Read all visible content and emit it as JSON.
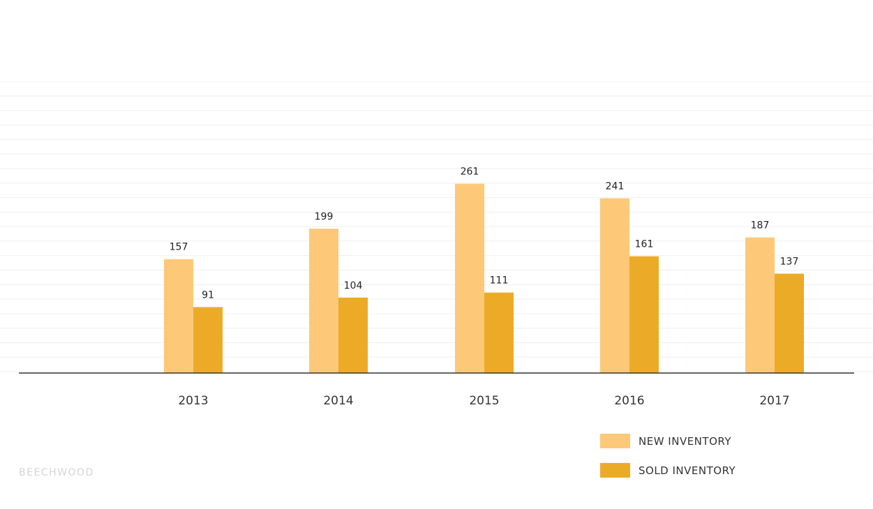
{
  "chart_data": {
    "type": "bar",
    "categories": [
      "2013",
      "2014",
      "2015",
      "2016",
      "2017"
    ],
    "series": [
      {
        "name": "NEW INVENTORY",
        "values": [
          157,
          199,
          261,
          241,
          187
        ],
        "color": "#fdc978"
      },
      {
        "name": "SOLD INVENTORY",
        "values": [
          91,
          104,
          111,
          161,
          137
        ],
        "color": "#ecab27"
      }
    ],
    "ylim": [
      0,
      300
    ],
    "grid": true,
    "legend_position": "bottom-right",
    "title": "",
    "xlabel": "",
    "ylabel": ""
  },
  "watermark": "BEECHWOOD"
}
